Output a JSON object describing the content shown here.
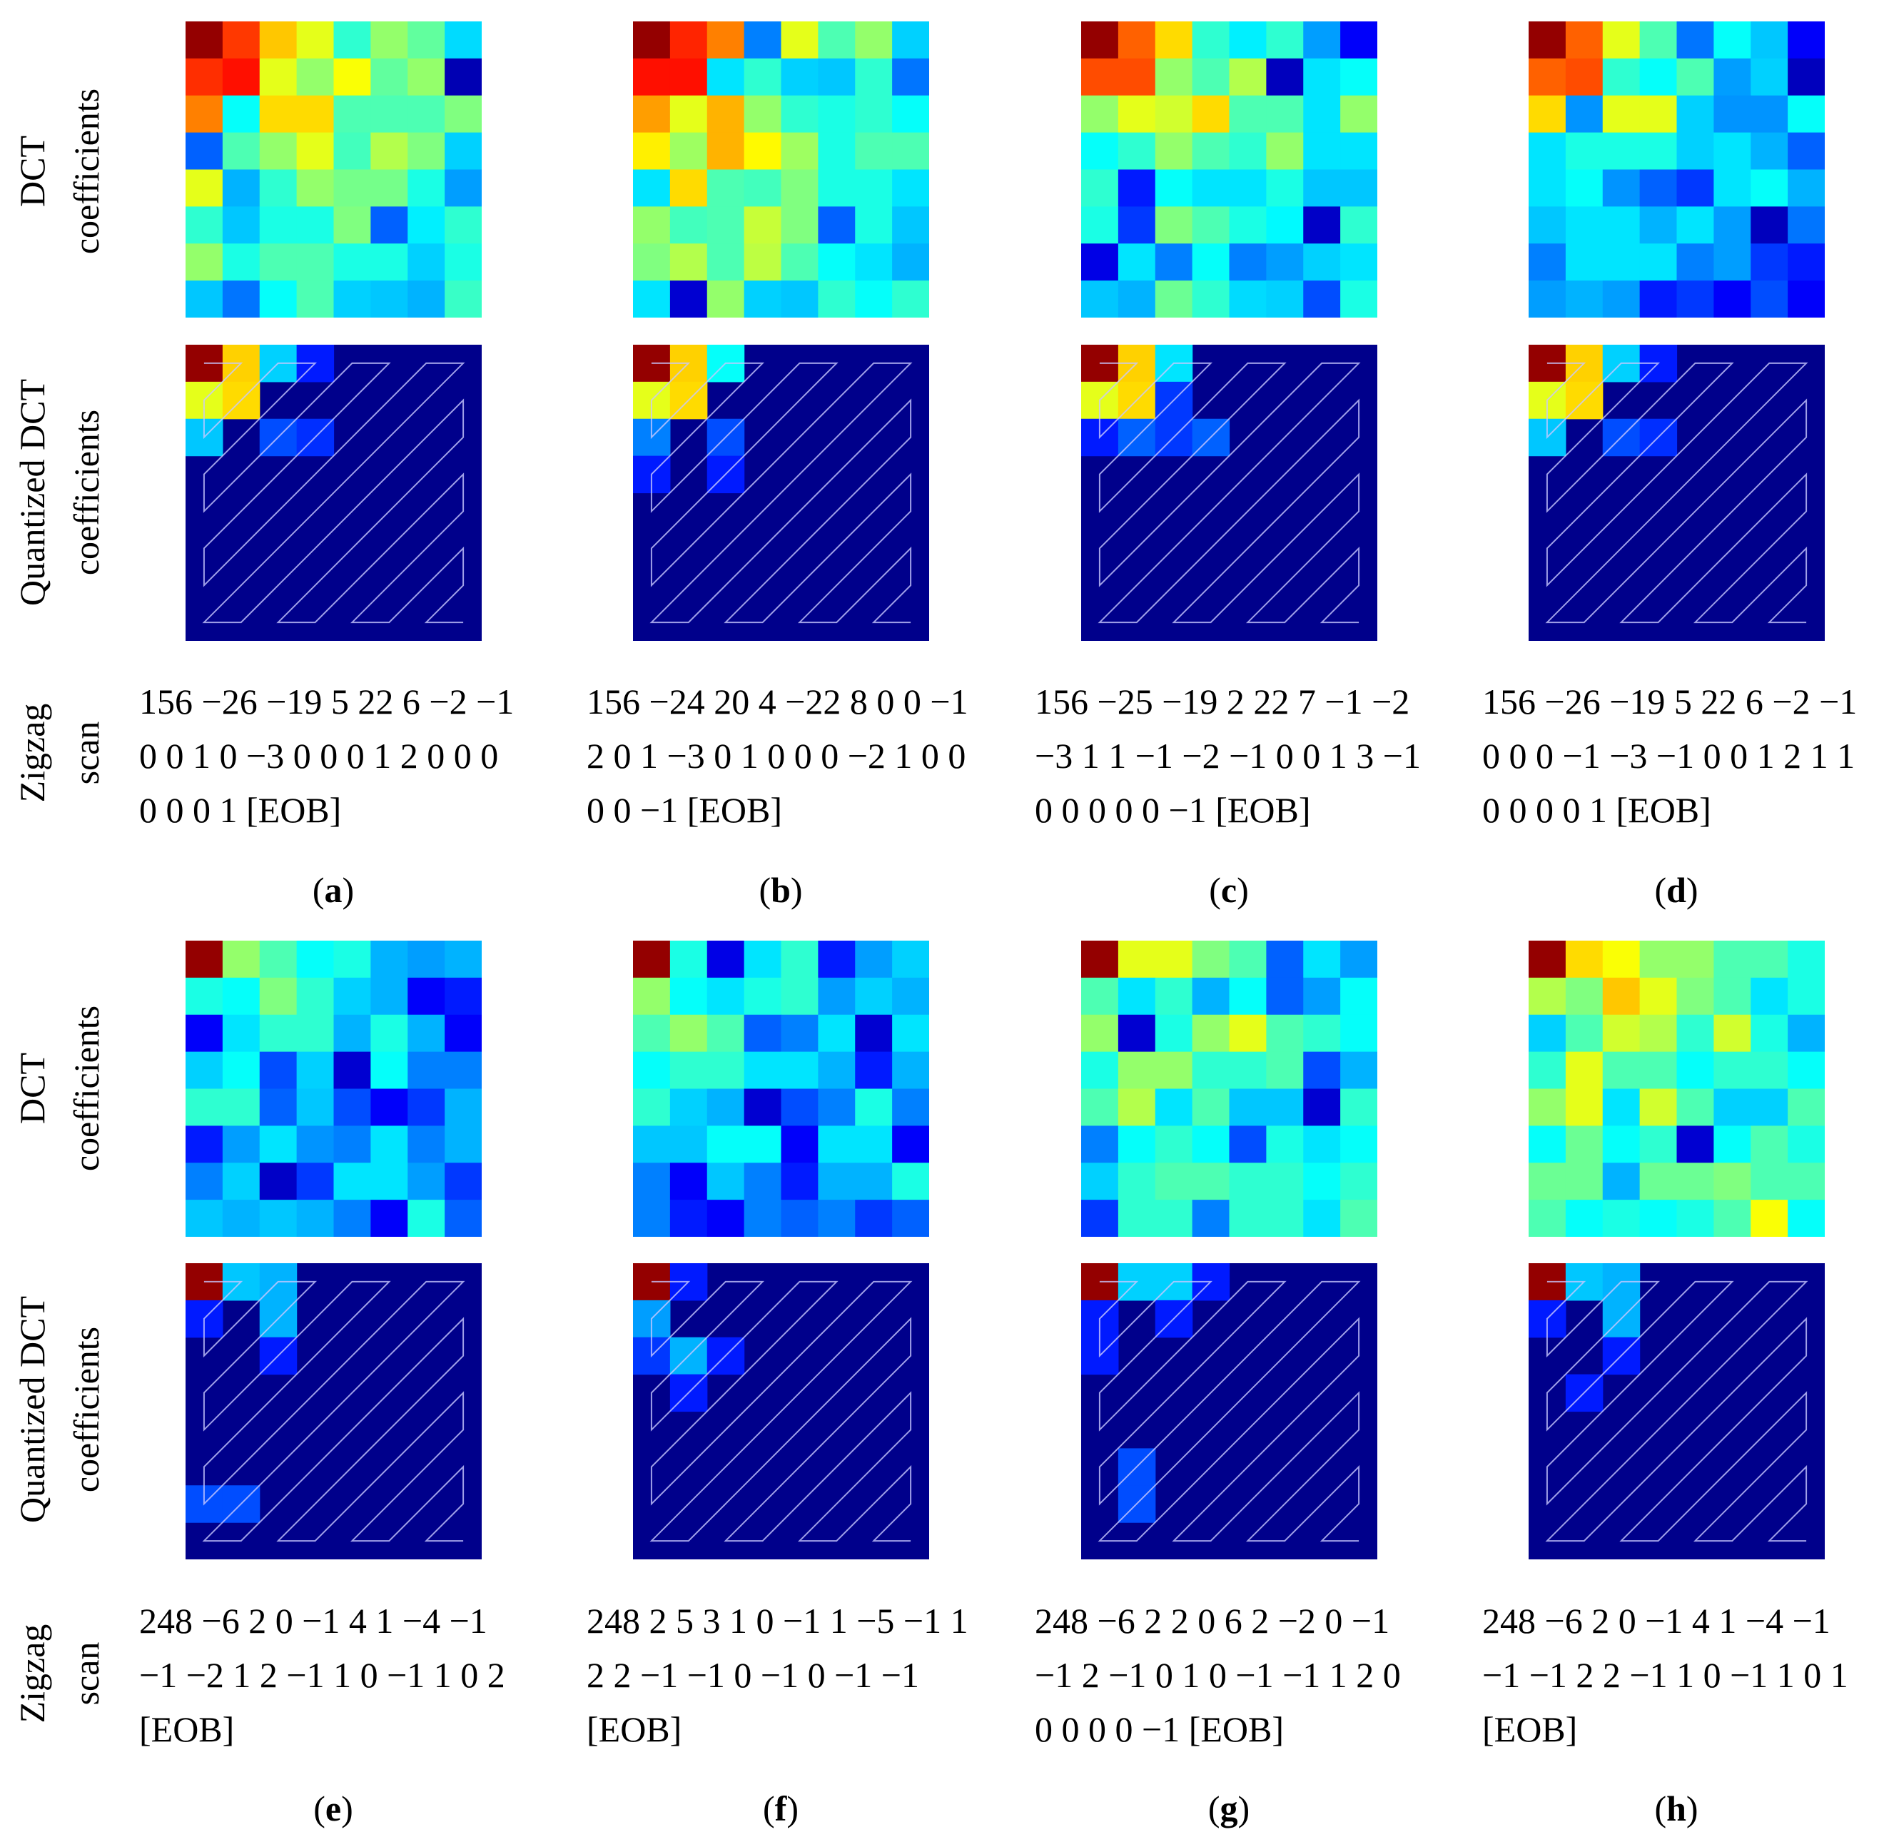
{
  "row_labels": {
    "dct": [
      "DCT",
      "coefficients"
    ],
    "quantized": [
      "Quantized DCT",
      "coefficients"
    ],
    "zigzag": [
      "Zigzag",
      "scan"
    ]
  },
  "colormap": {
    "name": "jet",
    "color_range": [
      0,
      1
    ],
    "background_color": "#00008b",
    "zigzag_path_color": "#c8c8ff"
  },
  "panels": [
    {
      "letter": "a",
      "zigzag_lines": [
        "156 −26 −19 5 22 6 −2 −1",
        "0 0 1 0 −3 0 0 0 1 2 0 0 0",
        "0 0 0 1 [EOB]"
      ],
      "dct_grid": [
        [
          0.98,
          0.82,
          0.68,
          0.6,
          0.42,
          0.52,
          0.47,
          0.34
        ],
        [
          0.83,
          0.86,
          0.6,
          0.52,
          0.62,
          0.47,
          0.52,
          0.05
        ],
        [
          0.75,
          0.38,
          0.66,
          0.66,
          0.45,
          0.45,
          0.45,
          0.5
        ],
        [
          0.22,
          0.45,
          0.52,
          0.6,
          0.44,
          0.55,
          0.5,
          0.33
        ],
        [
          0.6,
          0.3,
          0.42,
          0.52,
          0.49,
          0.49,
          0.4,
          0.28
        ],
        [
          0.42,
          0.32,
          0.4,
          0.4,
          0.5,
          0.22,
          0.36,
          0.42
        ],
        [
          0.52,
          0.4,
          0.45,
          0.45,
          0.4,
          0.4,
          0.33,
          0.4
        ],
        [
          0.32,
          0.24,
          0.38,
          0.45,
          0.33,
          0.32,
          0.3,
          0.43
        ]
      ],
      "quant_cells": [
        {
          "r": 0,
          "c": 0,
          "v": 0.98
        },
        {
          "r": 0,
          "c": 1,
          "v": 0.67
        },
        {
          "r": 0,
          "c": 2,
          "v": 0.33
        },
        {
          "r": 0,
          "c": 3,
          "v": 0.15
        },
        {
          "r": 1,
          "c": 0,
          "v": 0.6
        },
        {
          "r": 1,
          "c": 1,
          "v": 0.66
        },
        {
          "r": 2,
          "c": 0,
          "v": 0.32
        },
        {
          "r": 2,
          "c": 2,
          "v": 0.2
        },
        {
          "r": 2,
          "c": 3,
          "v": 0.17
        }
      ]
    },
    {
      "letter": "b",
      "zigzag_lines": [
        "156 −24 20 4 −22 8 0 0 −1",
        "2 0 1 −3 0 1 0 0 0 −2 1 0 0",
        "0 0 −1 [EOB]"
      ],
      "dct_grid": [
        [
          0.98,
          0.84,
          0.75,
          0.25,
          0.6,
          0.45,
          0.52,
          0.33
        ],
        [
          0.86,
          0.86,
          0.35,
          0.42,
          0.33,
          0.32,
          0.42,
          0.24
        ],
        [
          0.72,
          0.6,
          0.7,
          0.52,
          0.42,
          0.4,
          0.42,
          0.38
        ],
        [
          0.64,
          0.53,
          0.7,
          0.63,
          0.53,
          0.4,
          0.45,
          0.45
        ],
        [
          0.35,
          0.66,
          0.45,
          0.44,
          0.5,
          0.4,
          0.4,
          0.35
        ],
        [
          0.52,
          0.44,
          0.45,
          0.57,
          0.5,
          0.22,
          0.4,
          0.32
        ],
        [
          0.5,
          0.55,
          0.45,
          0.56,
          0.45,
          0.38,
          0.35,
          0.3
        ],
        [
          0.35,
          0.08,
          0.52,
          0.33,
          0.32,
          0.42,
          0.38,
          0.42
        ]
      ],
      "quant_cells": [
        {
          "r": 0,
          "c": 0,
          "v": 0.98
        },
        {
          "r": 0,
          "c": 1,
          "v": 0.67
        },
        {
          "r": 0,
          "c": 2,
          "v": 0.38
        },
        {
          "r": 1,
          "c": 0,
          "v": 0.6
        },
        {
          "r": 1,
          "c": 1,
          "v": 0.66
        },
        {
          "r": 2,
          "c": 0,
          "v": 0.25
        },
        {
          "r": 2,
          "c": 2,
          "v": 0.2
        },
        {
          "r": 3,
          "c": 0,
          "v": 0.15
        },
        {
          "r": 3,
          "c": 2,
          "v": 0.15
        }
      ]
    },
    {
      "letter": "c",
      "zigzag_lines": [
        "156 −25 −19 2 22 7 −1 −2",
        "−3 1 1 −1 −2 −1 0 0 1 3 −1",
        "0 0 0 0 0 −1 [EOB]"
      ],
      "dct_grid": [
        [
          0.98,
          0.78,
          0.66,
          0.42,
          0.36,
          0.42,
          0.28,
          0.12
        ],
        [
          0.8,
          0.8,
          0.52,
          0.45,
          0.55,
          0.06,
          0.35,
          0.38
        ],
        [
          0.52,
          0.6,
          0.58,
          0.66,
          0.45,
          0.45,
          0.35,
          0.52
        ],
        [
          0.38,
          0.42,
          0.52,
          0.45,
          0.42,
          0.52,
          0.35,
          0.35
        ],
        [
          0.42,
          0.15,
          0.38,
          0.35,
          0.35,
          0.4,
          0.32,
          0.32
        ],
        [
          0.4,
          0.18,
          0.5,
          0.45,
          0.4,
          0.37,
          0.07,
          0.42
        ],
        [
          0.1,
          0.35,
          0.25,
          0.38,
          0.25,
          0.28,
          0.33,
          0.35
        ],
        [
          0.32,
          0.3,
          0.48,
          0.42,
          0.34,
          0.33,
          0.2,
          0.4
        ]
      ],
      "quant_cells": [
        {
          "r": 0,
          "c": 0,
          "v": 0.98
        },
        {
          "r": 0,
          "c": 1,
          "v": 0.67
        },
        {
          "r": 0,
          "c": 2,
          "v": 0.35
        },
        {
          "r": 1,
          "c": 0,
          "v": 0.6
        },
        {
          "r": 1,
          "c": 1,
          "v": 0.66
        },
        {
          "r": 1,
          "c": 2,
          "v": 0.18
        },
        {
          "r": 2,
          "c": 0,
          "v": 0.15
        },
        {
          "r": 2,
          "c": 1,
          "v": 0.22
        },
        {
          "r": 2,
          "c": 2,
          "v": 0.18
        },
        {
          "r": 2,
          "c": 3,
          "v": 0.22
        }
      ]
    },
    {
      "letter": "d",
      "zigzag_lines": [
        "156 −26 −19 5 22 6 −2 −1",
        "0 0 0 −1 −3 −1 0 0 1 2 1 1",
        "0 0 0 0 1 [EOB]"
      ],
      "dct_grid": [
        [
          0.98,
          0.78,
          0.6,
          0.45,
          0.24,
          0.38,
          0.32,
          0.12
        ],
        [
          0.78,
          0.8,
          0.42,
          0.38,
          0.45,
          0.28,
          0.33,
          0.06
        ],
        [
          0.66,
          0.27,
          0.6,
          0.6,
          0.33,
          0.27,
          0.27,
          0.38
        ],
        [
          0.35,
          0.4,
          0.4,
          0.4,
          0.33,
          0.35,
          0.3,
          0.22
        ],
        [
          0.35,
          0.38,
          0.27,
          0.22,
          0.18,
          0.35,
          0.38,
          0.3
        ],
        [
          0.32,
          0.35,
          0.35,
          0.3,
          0.35,
          0.28,
          0.06,
          0.24
        ],
        [
          0.25,
          0.35,
          0.35,
          0.35,
          0.25,
          0.28,
          0.18,
          0.15
        ],
        [
          0.28,
          0.3,
          0.28,
          0.15,
          0.18,
          0.12,
          0.2,
          0.12
        ]
      ],
      "quant_cells": [
        {
          "r": 0,
          "c": 0,
          "v": 0.98
        },
        {
          "r": 0,
          "c": 1,
          "v": 0.67
        },
        {
          "r": 0,
          "c": 2,
          "v": 0.33
        },
        {
          "r": 0,
          "c": 3,
          "v": 0.15
        },
        {
          "r": 1,
          "c": 0,
          "v": 0.6
        },
        {
          "r": 1,
          "c": 1,
          "v": 0.66
        },
        {
          "r": 2,
          "c": 0,
          "v": 0.32
        },
        {
          "r": 2,
          "c": 2,
          "v": 0.2
        },
        {
          "r": 2,
          "c": 3,
          "v": 0.17
        }
      ]
    },
    {
      "letter": "e",
      "zigzag_lines": [
        "248 −6 2 0 −1 4 1 −4 −1",
        "−1 −2 1 2 −1 1 0 −1 1 0 2",
        "[EOB]"
      ],
      "dct_grid": [
        [
          0.98,
          0.52,
          0.45,
          0.38,
          0.4,
          0.3,
          0.28,
          0.3
        ],
        [
          0.4,
          0.38,
          0.5,
          0.42,
          0.33,
          0.3,
          0.12,
          0.15
        ],
        [
          0.12,
          0.35,
          0.42,
          0.42,
          0.3,
          0.4,
          0.3,
          0.12
        ],
        [
          0.33,
          0.38,
          0.2,
          0.33,
          0.08,
          0.38,
          0.25,
          0.25
        ],
        [
          0.42,
          0.42,
          0.22,
          0.32,
          0.2,
          0.12,
          0.18,
          0.3
        ],
        [
          0.15,
          0.28,
          0.35,
          0.27,
          0.25,
          0.35,
          0.25,
          0.3
        ],
        [
          0.25,
          0.33,
          0.07,
          0.18,
          0.35,
          0.35,
          0.28,
          0.18
        ],
        [
          0.32,
          0.3,
          0.32,
          0.3,
          0.25,
          0.12,
          0.4,
          0.22
        ]
      ],
      "quant_cells": [
        {
          "r": 0,
          "c": 0,
          "v": 0.98
        },
        {
          "r": 0,
          "c": 1,
          "v": 0.32
        },
        {
          "r": 0,
          "c": 2,
          "v": 0.3
        },
        {
          "r": 1,
          "c": 0,
          "v": 0.15
        },
        {
          "r": 1,
          "c": 2,
          "v": 0.3
        },
        {
          "r": 2,
          "c": 2,
          "v": 0.15
        },
        {
          "r": 6,
          "c": 0,
          "v": 0.2
        },
        {
          "r": 6,
          "c": 1,
          "v": 0.2
        }
      ]
    },
    {
      "letter": "f",
      "zigzag_lines": [
        "248 2 5 3 1 0 −1 1 −5 −1 1",
        "2 2 −1 −1 0 −1 0 −1 −1",
        "[EOB]"
      ],
      "dct_grid": [
        [
          0.98,
          0.4,
          0.1,
          0.35,
          0.42,
          0.15,
          0.28,
          0.33
        ],
        [
          0.52,
          0.38,
          0.35,
          0.4,
          0.42,
          0.28,
          0.33,
          0.3
        ],
        [
          0.45,
          0.52,
          0.45,
          0.22,
          0.25,
          0.35,
          0.08,
          0.35
        ],
        [
          0.38,
          0.42,
          0.42,
          0.35,
          0.35,
          0.3,
          0.15,
          0.3
        ],
        [
          0.42,
          0.33,
          0.3,
          0.08,
          0.2,
          0.25,
          0.4,
          0.25
        ],
        [
          0.32,
          0.32,
          0.38,
          0.38,
          0.12,
          0.35,
          0.35,
          0.12
        ],
        [
          0.25,
          0.12,
          0.32,
          0.25,
          0.15,
          0.3,
          0.3,
          0.4
        ],
        [
          0.25,
          0.15,
          0.12,
          0.25,
          0.22,
          0.25,
          0.18,
          0.22
        ]
      ],
      "quant_cells": [
        {
          "r": 0,
          "c": 0,
          "v": 0.98
        },
        {
          "r": 0,
          "c": 1,
          "v": 0.15
        },
        {
          "r": 1,
          "c": 0,
          "v": 0.28
        },
        {
          "r": 2,
          "c": 0,
          "v": 0.18
        },
        {
          "r": 2,
          "c": 1,
          "v": 0.3
        },
        {
          "r": 2,
          "c": 2,
          "v": 0.15
        },
        {
          "r": 3,
          "c": 1,
          "v": 0.15
        }
      ]
    },
    {
      "letter": "g",
      "zigzag_lines": [
        "248 −6 2 2 0 6 2 −2 0 −1",
        "−1 2 −1 0 1 0 −1 −1 1 2 0",
        "0 0 0 0 −1 [EOB]"
      ],
      "dct_grid": [
        [
          0.98,
          0.6,
          0.6,
          0.5,
          0.45,
          0.22,
          0.35,
          0.28
        ],
        [
          0.45,
          0.35,
          0.42,
          0.3,
          0.38,
          0.22,
          0.28,
          0.38
        ],
        [
          0.52,
          0.08,
          0.4,
          0.52,
          0.6,
          0.45,
          0.42,
          0.38
        ],
        [
          0.4,
          0.52,
          0.52,
          0.42,
          0.42,
          0.45,
          0.2,
          0.3
        ],
        [
          0.45,
          0.55,
          0.35,
          0.45,
          0.32,
          0.32,
          0.08,
          0.42
        ],
        [
          0.25,
          0.38,
          0.42,
          0.38,
          0.2,
          0.4,
          0.35,
          0.38
        ],
        [
          0.33,
          0.42,
          0.45,
          0.45,
          0.42,
          0.42,
          0.38,
          0.42
        ],
        [
          0.18,
          0.42,
          0.42,
          0.25,
          0.42,
          0.42,
          0.35,
          0.45
        ]
      ],
      "quant_cells": [
        {
          "r": 0,
          "c": 0,
          "v": 0.98
        },
        {
          "r": 0,
          "c": 1,
          "v": 0.33
        },
        {
          "r": 0,
          "c": 2,
          "v": 0.33
        },
        {
          "r": 0,
          "c": 3,
          "v": 0.15
        },
        {
          "r": 1,
          "c": 0,
          "v": 0.15
        },
        {
          "r": 1,
          "c": 2,
          "v": 0.15
        },
        {
          "r": 2,
          "c": 0,
          "v": 0.15
        },
        {
          "r": 5,
          "c": 1,
          "v": 0.2
        },
        {
          "r": 6,
          "c": 1,
          "v": 0.2
        }
      ]
    },
    {
      "letter": "h",
      "zigzag_lines": [
        "248 −6 2 0 −1 4 1 −4 −1",
        "−1 −1 2 2 −1 1 0 −1 1 0 1",
        "[EOB]"
      ],
      "dct_grid": [
        [
          0.98,
          0.66,
          0.62,
          0.52,
          0.52,
          0.45,
          0.45,
          0.4
        ],
        [
          0.55,
          0.5,
          0.68,
          0.6,
          0.5,
          0.45,
          0.35,
          0.4
        ],
        [
          0.33,
          0.45,
          0.58,
          0.55,
          0.42,
          0.58,
          0.4,
          0.3
        ],
        [
          0.42,
          0.6,
          0.45,
          0.45,
          0.38,
          0.42,
          0.42,
          0.38
        ],
        [
          0.52,
          0.6,
          0.35,
          0.58,
          0.45,
          0.33,
          0.33,
          0.45
        ],
        [
          0.38,
          0.48,
          0.38,
          0.42,
          0.08,
          0.38,
          0.45,
          0.4
        ],
        [
          0.48,
          0.48,
          0.3,
          0.48,
          0.48,
          0.5,
          0.45,
          0.45
        ],
        [
          0.45,
          0.38,
          0.4,
          0.38,
          0.4,
          0.45,
          0.62,
          0.38
        ]
      ],
      "quant_cells": [
        {
          "r": 0,
          "c": 0,
          "v": 0.98
        },
        {
          "r": 0,
          "c": 1,
          "v": 0.32
        },
        {
          "r": 0,
          "c": 2,
          "v": 0.3
        },
        {
          "r": 1,
          "c": 0,
          "v": 0.15
        },
        {
          "r": 1,
          "c": 2,
          "v": 0.3
        },
        {
          "r": 2,
          "c": 2,
          "v": 0.15
        },
        {
          "r": 3,
          "c": 1,
          "v": 0.15
        }
      ]
    }
  ]
}
